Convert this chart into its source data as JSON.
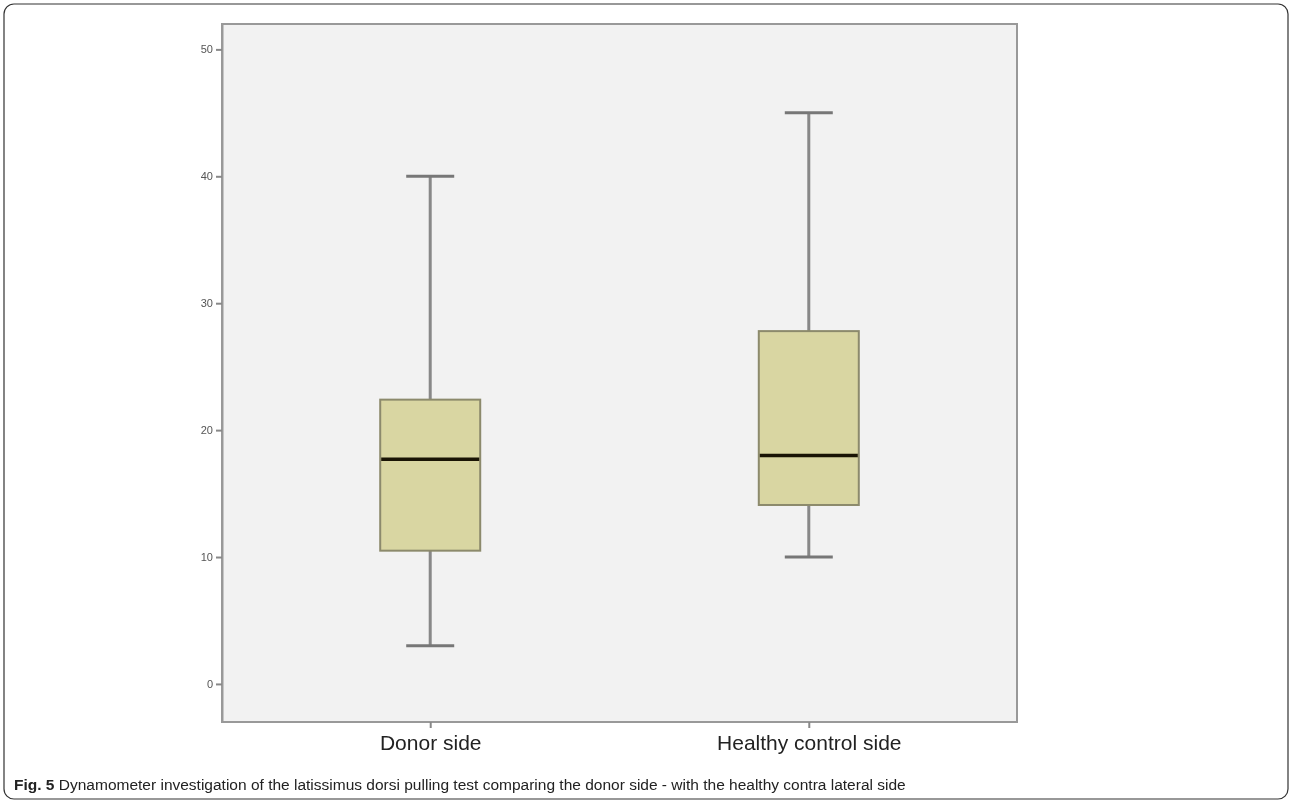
{
  "chart_data": {
    "type": "box",
    "categories": [
      "Donor side",
      "Healthy control side"
    ],
    "boxes": [
      {
        "low": 3,
        "q1": 10.5,
        "median": 17.7,
        "q3": 22.4,
        "high": 40
      },
      {
        "low": 10,
        "q1": 14.1,
        "median": 18,
        "q3": 27.8,
        "high": 45
      }
    ],
    "color": "#d9d6a2",
    "ylim": [
      -3,
      52
    ],
    "yticks": [
      0,
      10,
      20,
      30,
      40,
      50
    ],
    "grid": false,
    "annotations": [
      "Fig. 5 Dynamometer investigation of the latissimus dorsi pulling test comparing the donor side - with the healthy contra lateral side"
    ]
  }
}
